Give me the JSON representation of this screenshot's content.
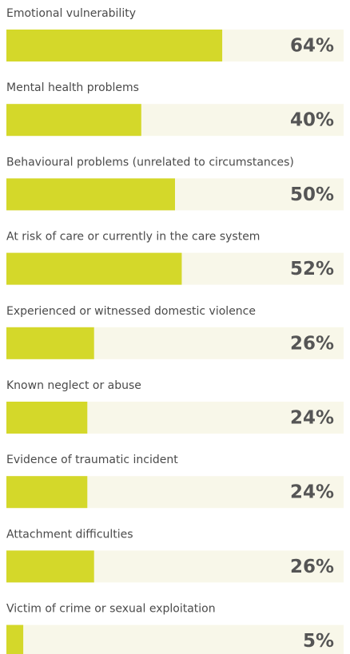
{
  "chart_data": {
    "type": "hbar",
    "categories": [
      "Emotional vulnerability",
      "Mental health problems",
      "Behavioural problems (unrelated to circumstances)",
      "At risk of care or currently in the care system",
      "Experienced or witnessed domestic violence",
      "Known neglect or abuse",
      "Evidence of traumatic incident",
      "Attachment difficulties",
      "Victim of crime or sexual exploitation"
    ],
    "values": [
      64,
      40,
      50,
      52,
      26,
      24,
      24,
      26,
      5
    ],
    "value_labels": [
      "64%",
      "40%",
      "50%",
      "52%",
      "26%",
      "24%",
      "24%",
      "26%",
      "5%"
    ],
    "color": "#d4d82a",
    "track_color": "#f8f7e9",
    "xlim": [
      0,
      100
    ]
  }
}
